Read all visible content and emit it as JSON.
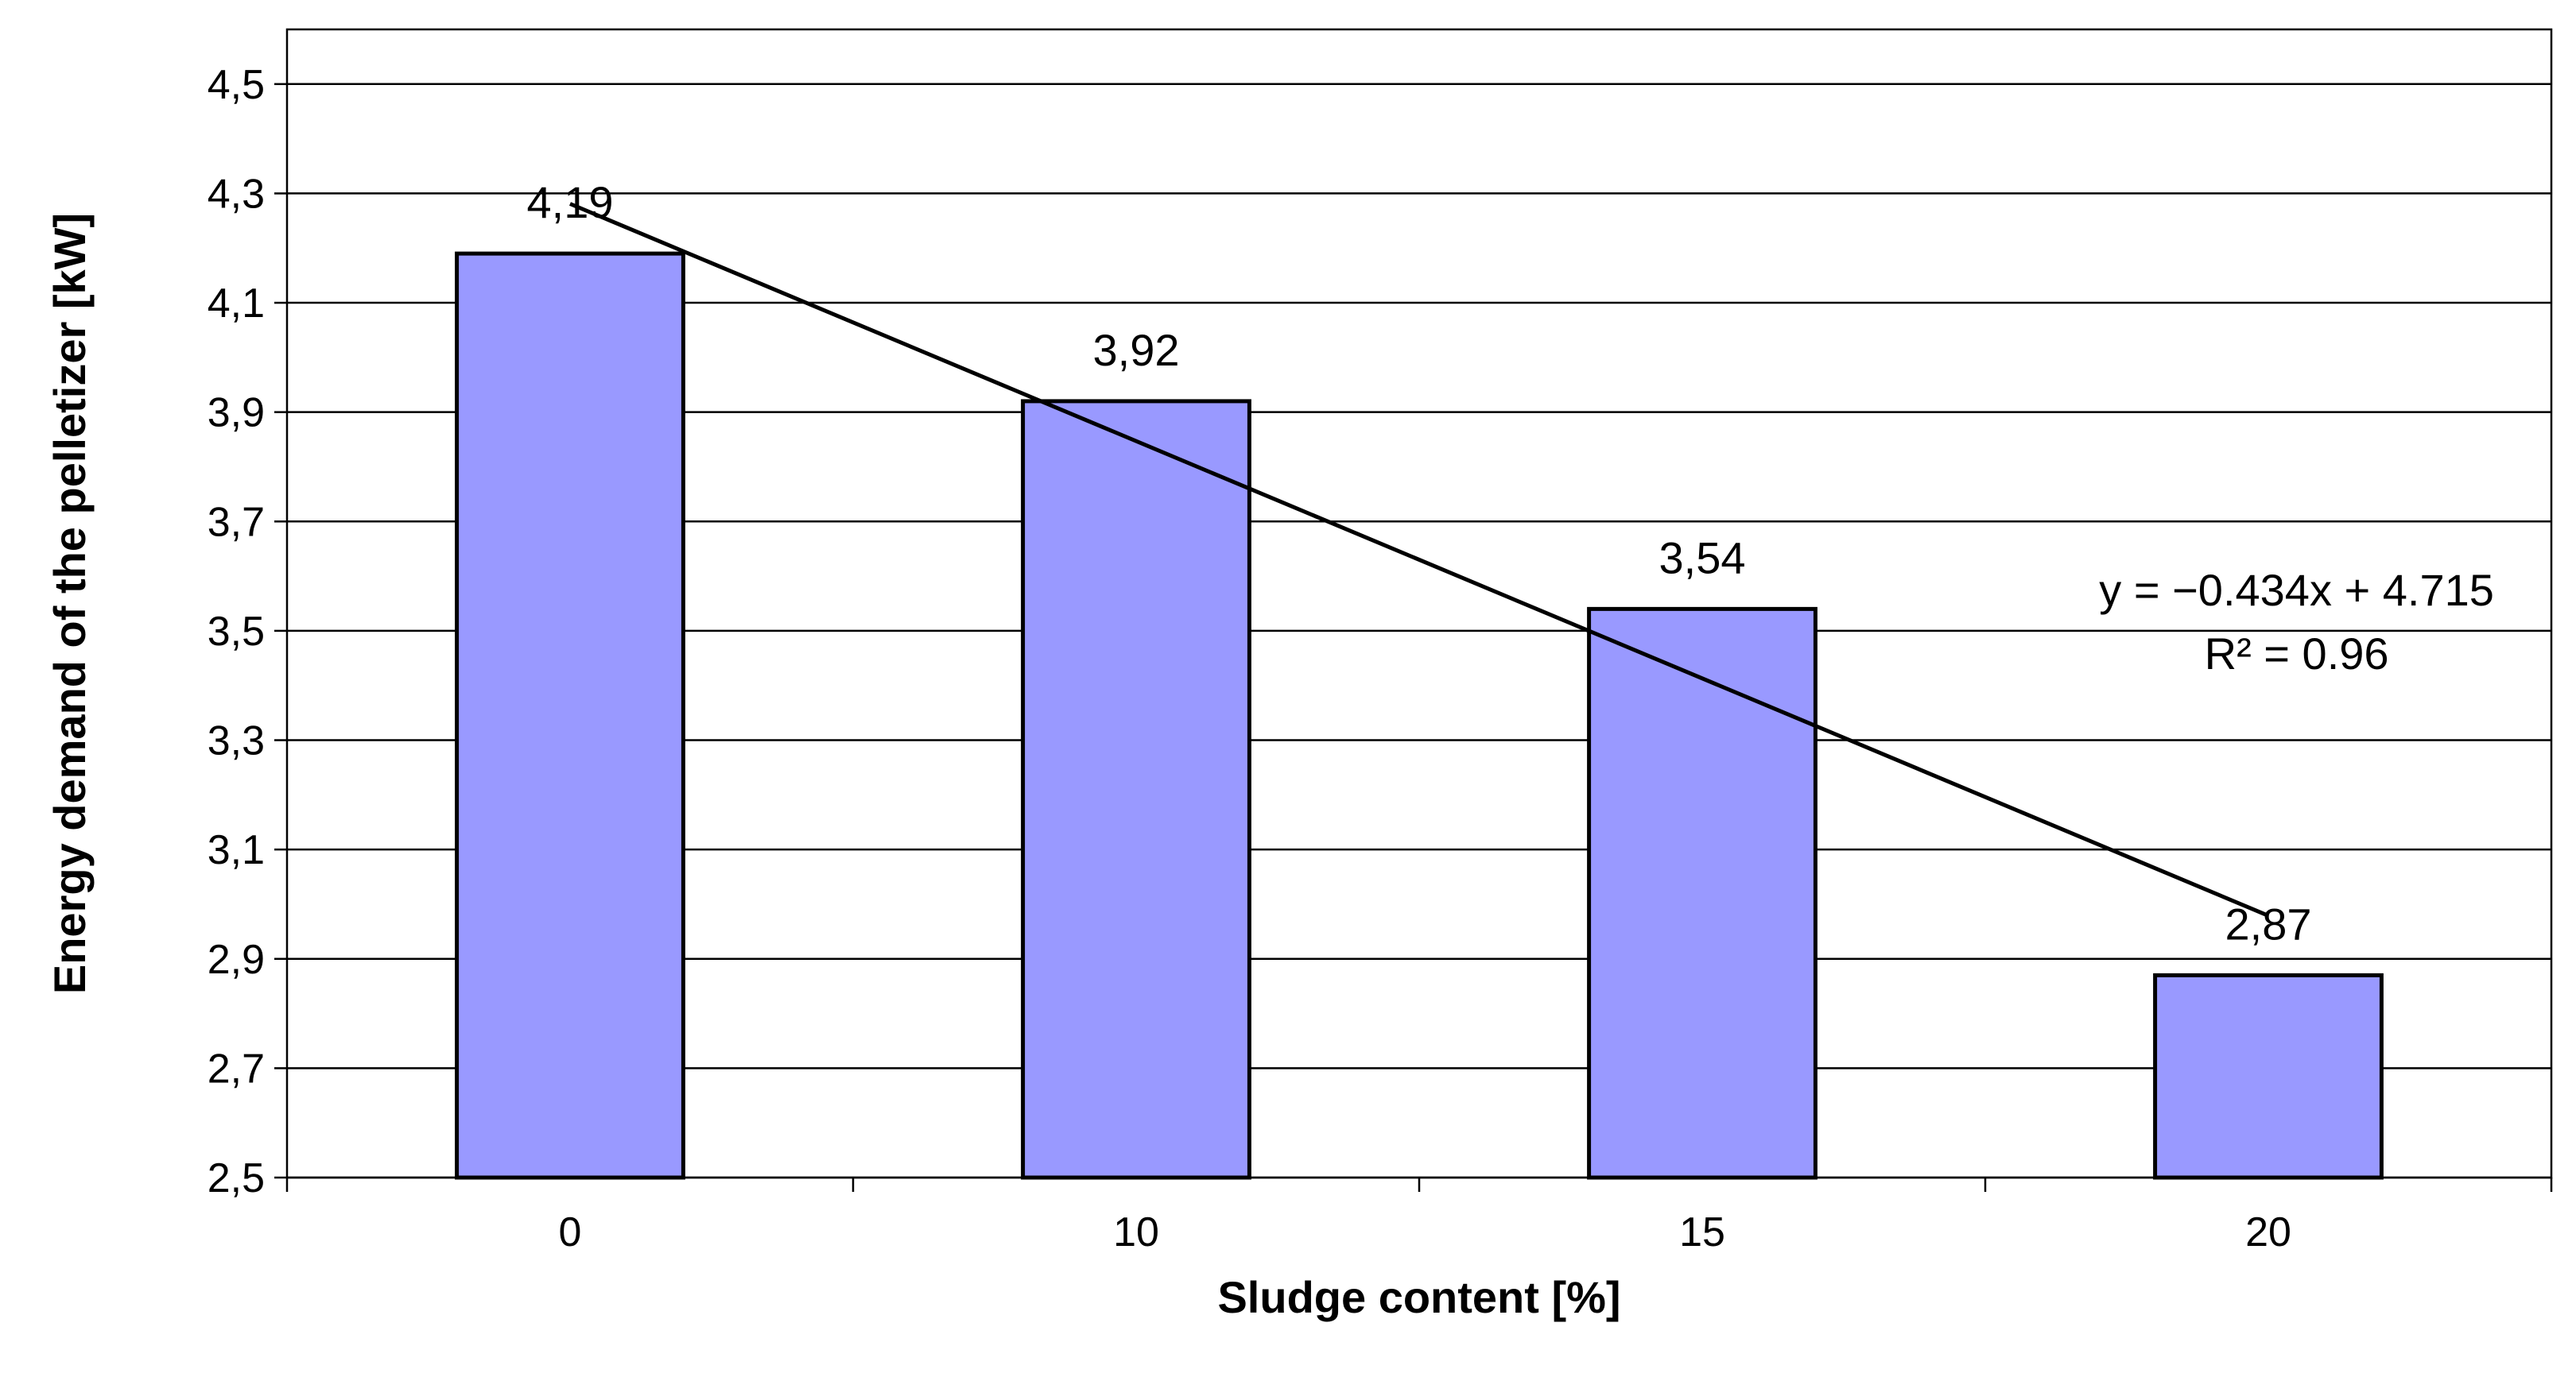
{
  "chart_data": {
    "type": "bar",
    "categories": [
      "0",
      "10",
      "15",
      "20"
    ],
    "values": [
      4.19,
      3.92,
      3.54,
      2.87
    ],
    "data_labels": [
      "4,19",
      "3,92",
      "3,54",
      "2,87"
    ],
    "xlabel": "Sludge content [%]",
    "ylabel": "Energy demand of the pelletizer [kW]",
    "ylim": [
      2.5,
      4.6
    ],
    "yticks": [
      2.5,
      2.7,
      2.9,
      3.1,
      3.3,
      3.5,
      3.7,
      3.9,
      4.1,
      4.3,
      4.5
    ],
    "ytick_labels": [
      "2,5",
      "2,7",
      "2,9",
      "3,1",
      "3,3",
      "3,5",
      "3,7",
      "3,9",
      "4,1",
      "4,3",
      "4,5"
    ],
    "grid": true,
    "bar_color": "#9999ff",
    "trendline": {
      "type": "linear",
      "slope": -0.434,
      "intercept": 4.715,
      "equation": "y = −0.434x + 4.715",
      "r_squared": "R² = 0.96"
    }
  }
}
